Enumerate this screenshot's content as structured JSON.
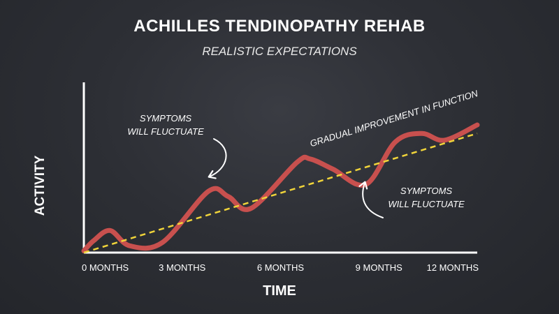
{
  "title": "ACHILLES TENDINOPATHY REHAB",
  "subtitle": "REALISTIC EXPECTATIONS",
  "colors": {
    "background": "#2b2d33",
    "curve": "#c8504e",
    "trend": "#f0d43a",
    "axis": "#ffffff"
  },
  "chart_data": {
    "type": "line",
    "title": "ACHILLES TENDINOPATHY REHAB",
    "subtitle": "REALISTIC EXPECTATIONS",
    "xlabel": "TIME",
    "ylabel": "ACTIVITY",
    "x_ticks": [
      "0 MONTHS",
      "3 MONTHS",
      "6 MONTHS",
      "9 MONTHS",
      "12 MONTHS"
    ],
    "xlim": [
      0,
      12
    ],
    "ylim": [
      0,
      10
    ],
    "grid": false,
    "series": [
      {
        "name": "",
        "style": "solid",
        "color": "#c8504e",
        "x": [
          0,
          0.3,
          0.8,
          1.4,
          2.4,
          3.8,
          4.4,
          5.1,
          6.5,
          6.9,
          7.6,
          8.6,
          9.5,
          10.3,
          11.0,
          12
        ],
        "y": [
          0.1,
          0.7,
          1.3,
          0.4,
          0.6,
          3.6,
          3.3,
          2.6,
          5.3,
          5.5,
          4.9,
          4.0,
          6.5,
          7.0,
          6.6,
          7.5
        ]
      },
      {
        "name": "GRADUAL IMPROVEMENT IN FUNCTION",
        "style": "dashed",
        "color": "#f0d43a",
        "x": [
          0,
          12
        ],
        "y": [
          0,
          7.0
        ]
      }
    ],
    "annotations": [
      {
        "lines": [
          "SYMPTOMS",
          "WILL FLUCTUATE"
        ],
        "points_to_x": 3.8,
        "points_to_y": 3.6
      },
      {
        "lines": [
          "SYMPTOMS",
          "WILL FLUCTUATE"
        ],
        "points_to_x": 8.6,
        "points_to_y": 4.0
      }
    ],
    "trend_label": "GRADUAL IMPROVEMENT IN FUNCTION"
  }
}
